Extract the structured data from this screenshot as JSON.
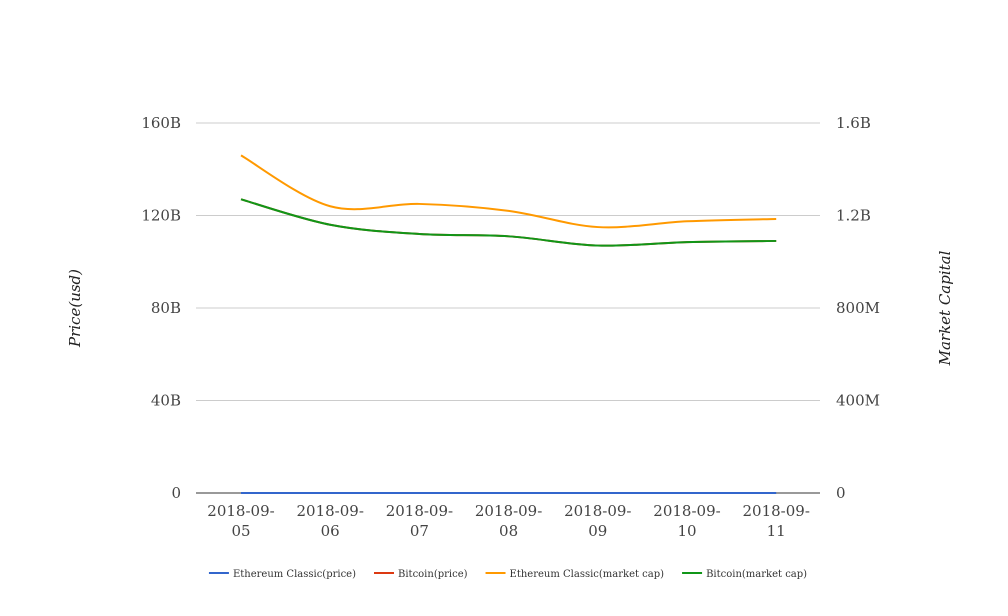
{
  "chart_data": {
    "type": "line",
    "categories": [
      "2018-09-05",
      "2018-09-06",
      "2018-09-07",
      "2018-09-08",
      "2018-09-09",
      "2018-09-10",
      "2018-09-11"
    ],
    "x_tick_labels": [
      [
        "2018-09-",
        "05"
      ],
      [
        "2018-09-",
        "06"
      ],
      [
        "2018-09-",
        "07"
      ],
      [
        "2018-09-",
        "08"
      ],
      [
        "2018-09-",
        "09"
      ],
      [
        "2018-09-",
        "10"
      ],
      [
        "2018-09-",
        "11"
      ]
    ],
    "left_axis": {
      "label": "Price(usd)",
      "ylim": [
        0,
        160000000000
      ],
      "ticks": [
        0,
        40000000000,
        80000000000,
        120000000000,
        160000000000
      ],
      "tick_labels": [
        "0",
        "40B",
        "80B",
        "120B",
        "160B"
      ]
    },
    "right_axis": {
      "label": "Market Capital",
      "ylim": [
        0,
        1600000000
      ],
      "ticks": [
        0,
        400000000,
        800000000,
        1200000000,
        1600000000
      ],
      "tick_labels": [
        "0",
        "400M",
        "800M",
        "1.2B",
        "1.6B"
      ]
    },
    "grid": true,
    "legend_position": "bottom",
    "series": [
      {
        "name": "Ethereum Classic(price)",
        "color": "#3366cc",
        "axis": "right",
        "values": [
          13,
          12,
          12.5,
          12.2,
          11.5,
          11.8,
          11.9
        ]
      },
      {
        "name": "Bitcoin(price)",
        "color": "#dc3912",
        "axis": "right",
        "values": [
          1270000000,
          1160000000,
          1120000000,
          1110000000,
          1070000000,
          1085000000,
          1090000000
        ]
      },
      {
        "name": "Ethereum Classic(market cap)",
        "color": "#ff9900",
        "axis": "right",
        "values": [
          1460000000,
          1240000000,
          1250000000,
          1220000000,
          1150000000,
          1175000000,
          1185000000
        ]
      },
      {
        "name": "Bitcoin(market cap)",
        "color": "#109618",
        "axis": "left",
        "values": [
          127000000000,
          116000000000,
          112000000000,
          111000000000,
          107000000000,
          108500000000,
          109000000000
        ]
      }
    ]
  }
}
